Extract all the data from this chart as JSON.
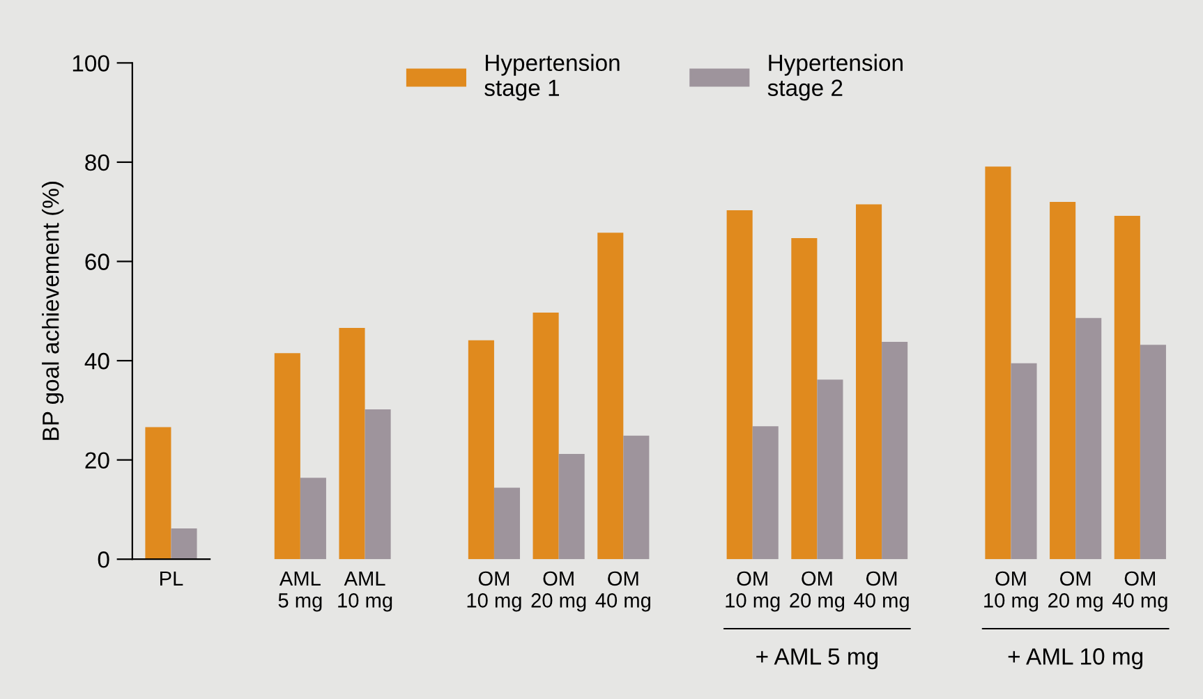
{
  "chart_data": {
    "type": "bar",
    "ylabel": "BP goal achievement (%)",
    "categories": [
      "PL",
      null,
      "AML\n5 mg",
      "AML\n10 mg",
      null,
      "OM\n10 mg",
      "OM\n20 mg",
      "OM\n40 mg",
      null,
      "OM\n10 mg",
      "OM\n20 mg",
      "OM\n40 mg",
      null,
      "OM\n10 mg",
      "OM\n20 mg",
      "OM\n40 mg"
    ],
    "series": [
      {
        "name": "Hypertension\nstage 1",
        "color": "#e08a1e",
        "values": [
          26.6,
          null,
          41.5,
          46.6,
          null,
          44.1,
          49.7,
          65.8,
          null,
          70.3,
          64.7,
          71.5,
          null,
          79.1,
          72.0,
          69.2
        ]
      },
      {
        "name": "Hypertension\nstage 2",
        "color": "#9e949c",
        "values": [
          6.2,
          null,
          16.4,
          30.2,
          null,
          14.4,
          21.2,
          24.9,
          null,
          26.8,
          36.2,
          43.8,
          null,
          39.5,
          48.6,
          43.2
        ]
      }
    ],
    "annotations": [
      "+ AML 5 mg",
      "+ AML 10 mg"
    ],
    "ylim": [
      0,
      100
    ],
    "yticks": [
      0,
      20,
      40,
      60,
      80,
      100
    ],
    "grid": false,
    "legend": "top"
  }
}
